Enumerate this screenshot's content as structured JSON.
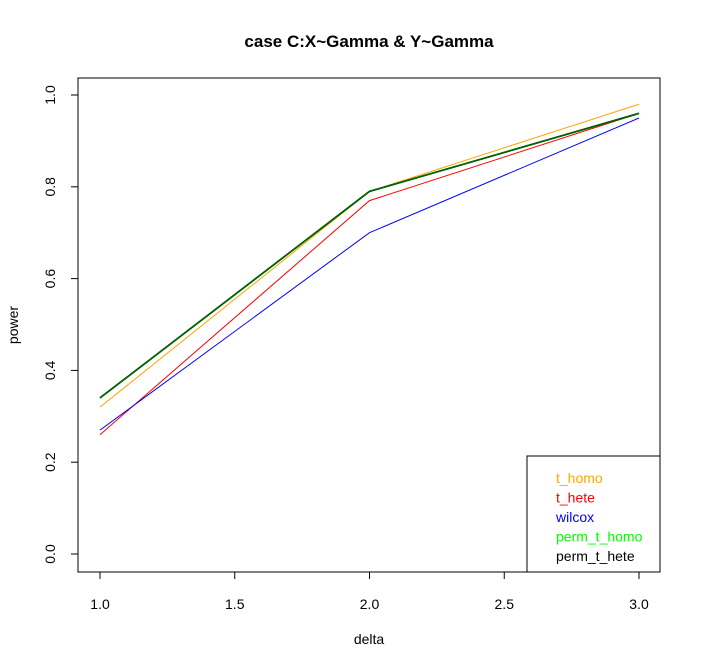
{
  "chart_data": {
    "type": "line",
    "title": "case C:X~Gamma & Y~Gamma",
    "xlabel": "delta",
    "ylabel": "power",
    "x": [
      1.0,
      2.0,
      3.0
    ],
    "xlim": [
      1.0,
      3.0
    ],
    "ylim": [
      0.0,
      1.0
    ],
    "xticks": [
      "1.0",
      "1.5",
      "2.0",
      "2.5",
      "3.0"
    ],
    "yticks": [
      "0.0",
      "0.2",
      "0.4",
      "0.6",
      "0.8",
      "1.0"
    ],
    "grid": false,
    "legend_position": "bottom-right",
    "series": [
      {
        "name": "t_homo",
        "color": "#FFA500",
        "values": [
          0.32,
          0.79,
          0.98
        ]
      },
      {
        "name": "t_hete",
        "color": "#FF0000",
        "values": [
          0.26,
          0.77,
          0.96
        ]
      },
      {
        "name": "wilcox",
        "color": "#0000FF",
        "values": [
          0.27,
          0.7,
          0.95
        ]
      },
      {
        "name": "perm_t_homo",
        "color": "#00FF00",
        "values": [
          0.34,
          0.79,
          0.96
        ]
      },
      {
        "name": "perm_t_hete",
        "color": "#000000",
        "values": [
          0.34,
          0.79,
          0.96
        ]
      },
      {
        "color": "#006400",
        "values": [
          0.34,
          0.79,
          0.96
        ]
      }
    ]
  }
}
